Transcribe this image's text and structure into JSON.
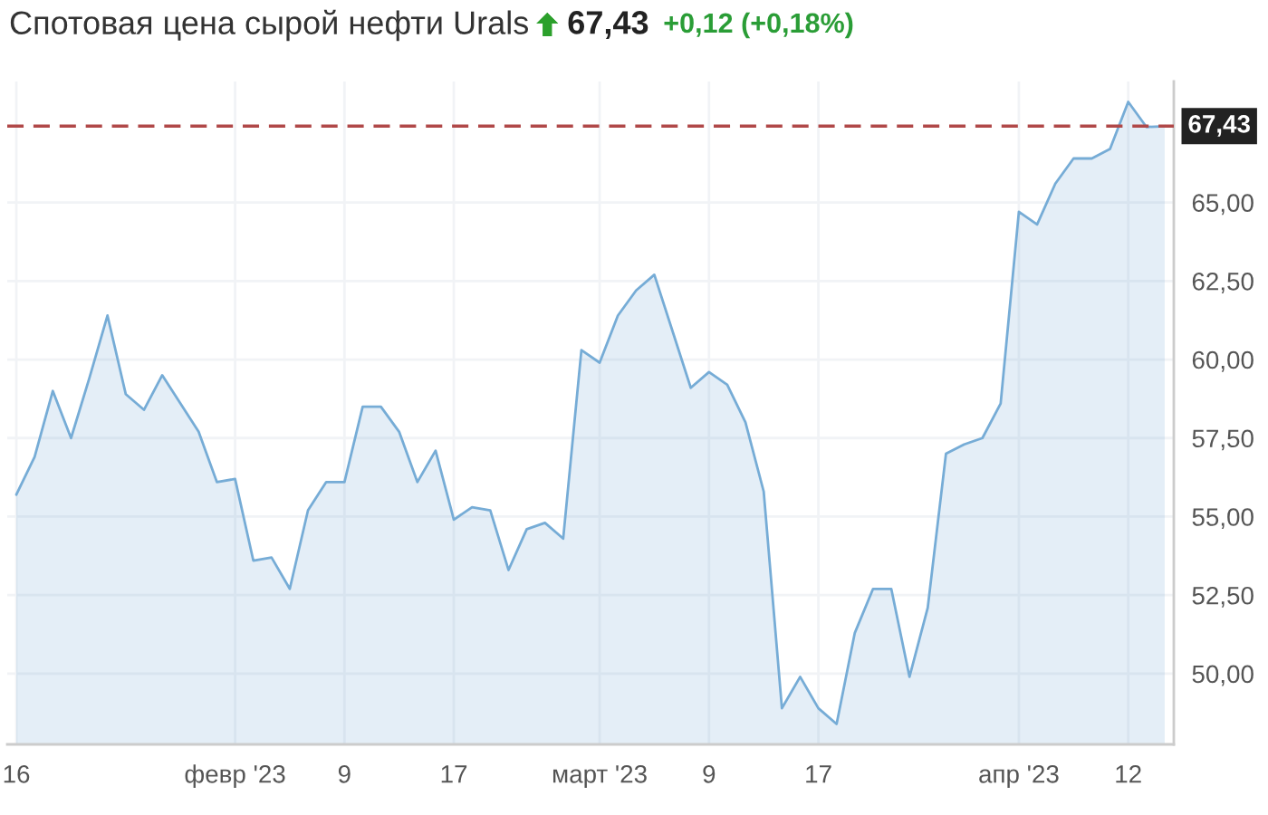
{
  "chart_data": {
    "type": "area",
    "title": "Спотовая цена сырой нефти Urals",
    "annotations": [
      "67,43",
      "+0,12 (+0,18%)"
    ],
    "categories": [
      "16",
      null,
      null,
      null,
      null,
      null,
      null,
      null,
      null,
      null,
      null,
      null,
      "февр '23",
      null,
      null,
      null,
      null,
      null,
      "9",
      null,
      null,
      null,
      null,
      null,
      "17",
      null,
      null,
      null,
      null,
      null,
      null,
      null,
      "март '23",
      null,
      null,
      null,
      null,
      null,
      "9",
      null,
      null,
      null,
      null,
      null,
      "17",
      null,
      null,
      null,
      null,
      null,
      null,
      null,
      null,
      null,
      null,
      "апр '23",
      null,
      null,
      null,
      null,
      null,
      "12",
      null,
      null
    ],
    "series": [
      {
        "color": "#76acd6",
        "values": [
          55.7,
          56.9,
          59.0,
          57.5,
          59.4,
          61.4,
          58.9,
          58.4,
          59.5,
          58.6,
          57.7,
          56.1,
          56.2,
          53.6,
          53.7,
          52.7,
          55.2,
          56.1,
          56.1,
          58.5,
          58.5,
          57.7,
          56.1,
          57.1,
          54.9,
          55.3,
          55.2,
          53.3,
          54.6,
          54.8,
          54.3,
          60.3,
          59.9,
          61.4,
          62.2,
          62.7,
          60.9,
          59.1,
          59.6,
          59.2,
          58.0,
          55.8,
          48.9,
          49.9,
          48.9,
          48.4,
          51.3,
          52.7,
          52.7,
          49.9,
          52.1,
          57.0,
          57.3,
          57.5,
          58.6,
          64.7,
          64.3,
          65.6,
          66.4,
          66.4,
          66.7,
          68.2,
          67.4,
          67.43
        ]
      }
    ],
    "ylim": [
      47.75,
      68.85
    ],
    "yticks": [
      {
        "value": 50,
        "label": "50,00"
      },
      {
        "value": 52.5,
        "label": "52,50"
      },
      {
        "value": 55,
        "label": "55,00"
      },
      {
        "value": 57.5,
        "label": "57,50"
      },
      {
        "value": 60,
        "label": "60,00"
      },
      {
        "value": 62.5,
        "label": "62,50"
      },
      {
        "value": 65,
        "label": "65,00"
      }
    ],
    "ref_lines": [
      {
        "axis": "y",
        "value": 67.43,
        "label": "67,43",
        "color": "#b04848",
        "line_style": "dashed"
      }
    ],
    "grid": true
  }
}
